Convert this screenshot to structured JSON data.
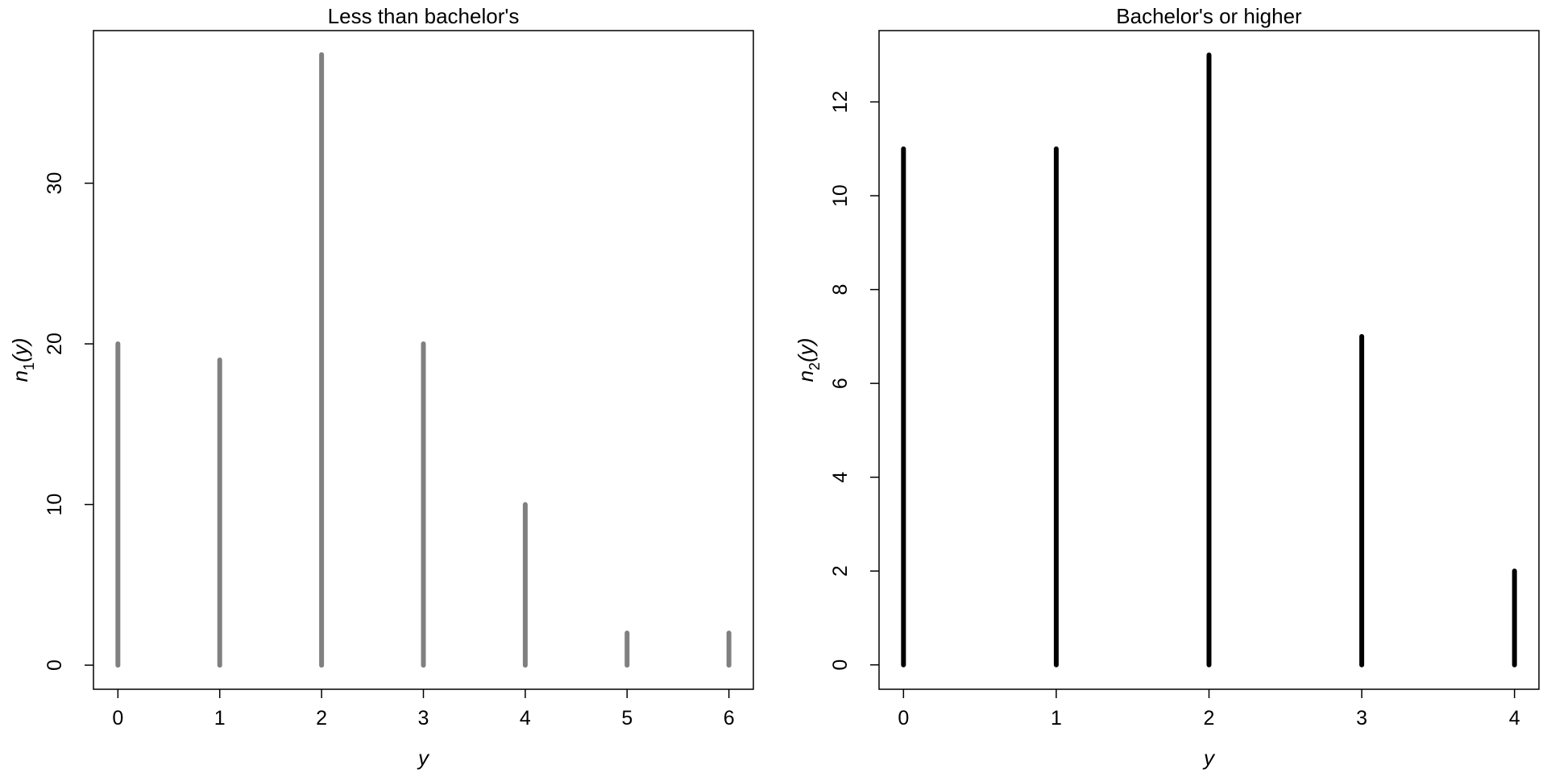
{
  "chart_data": [
    {
      "type": "bar",
      "title": "Less than bachelor's",
      "xlabel": "y",
      "ylabel": {
        "main": "n",
        "sub": "1",
        "arg": "(y)"
      },
      "categories": [
        0,
        1,
        2,
        3,
        4,
        5,
        6
      ],
      "values": [
        20,
        19,
        38,
        20,
        10,
        2,
        2
      ],
      "xlim": [
        -0.24,
        6.24
      ],
      "ylim": [
        -1.5,
        39.5
      ],
      "xticks": [
        0,
        1,
        2,
        3,
        4,
        5,
        6
      ],
      "yticks": [
        0,
        10,
        20,
        30
      ],
      "bar_color": "#808080",
      "grid": false,
      "legend": "none"
    },
    {
      "type": "bar",
      "title": "Bachelor's or higher",
      "xlabel": "y",
      "ylabel": {
        "main": "n",
        "sub": "2",
        "arg": "(y)"
      },
      "categories": [
        0,
        1,
        2,
        3,
        4
      ],
      "values": [
        11,
        11,
        13,
        7,
        2
      ],
      "xlim": [
        -0.16,
        4.16
      ],
      "ylim": [
        -0.52,
        13.52
      ],
      "xticks": [
        0,
        1,
        2,
        3,
        4
      ],
      "yticks": [
        0,
        2,
        4,
        6,
        8,
        10,
        12
      ],
      "bar_color": "#000000",
      "grid": false,
      "legend": "none"
    }
  ]
}
